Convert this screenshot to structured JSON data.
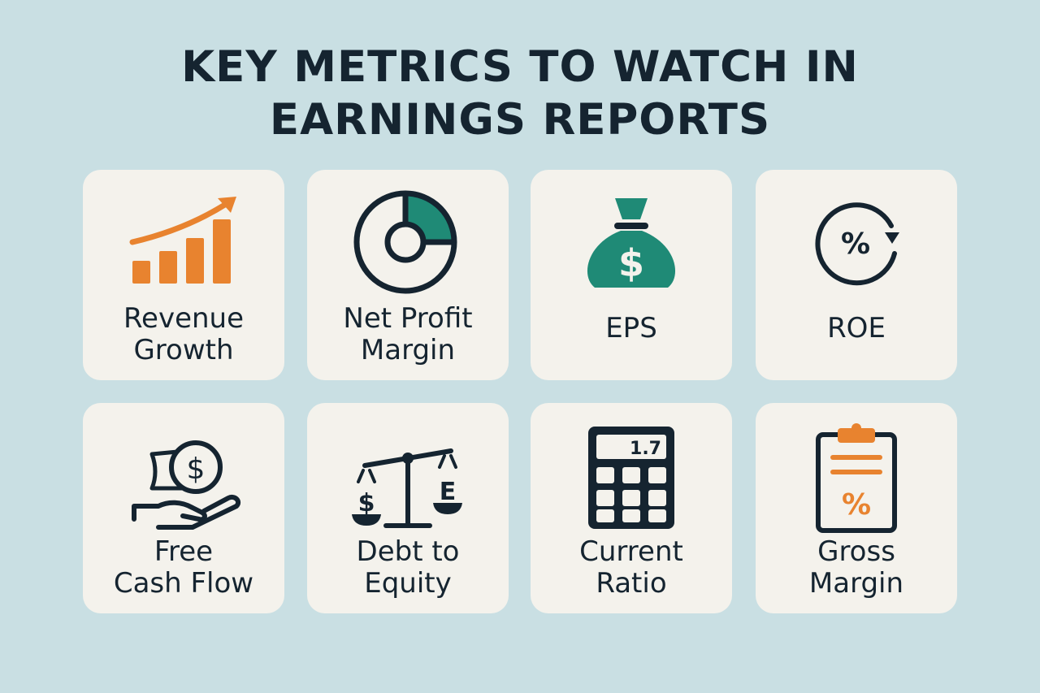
{
  "title": {
    "line1": "KEY METRICS TO WATCH IN",
    "line2": "EARNINGS REPORTS"
  },
  "metrics": [
    {
      "line1": "Revenue",
      "line2": "Growth",
      "icon": "bar-chart-up-arrow-icon"
    },
    {
      "line1": "Net Profit",
      "line2": "Margin",
      "icon": "donut-chart-icon"
    },
    {
      "line1": "EPS",
      "icon": "money-bag-icon"
    },
    {
      "line1": "ROE",
      "icon": "percent-cycle-icon"
    },
    {
      "line1": "Free",
      "line2": "Cash Flow",
      "icon": "hand-coin-icon"
    },
    {
      "line1": "Debt to",
      "line2": "Equity",
      "icon": "balance-scale-icon",
      "icon_labels": [
        "$",
        "E"
      ]
    },
    {
      "line1": "Current",
      "line2": "Ratio",
      "icon": "calculator-icon",
      "icon_display": "1.7"
    },
    {
      "line1": "Gross",
      "line2": "Margin",
      "icon": "clipboard-percent-icon"
    }
  ],
  "colors": {
    "background": "#c9dfe3",
    "card": "#f4f2ec",
    "text": "#152430",
    "orange": "#e8832f",
    "teal": "#1f8a76"
  }
}
